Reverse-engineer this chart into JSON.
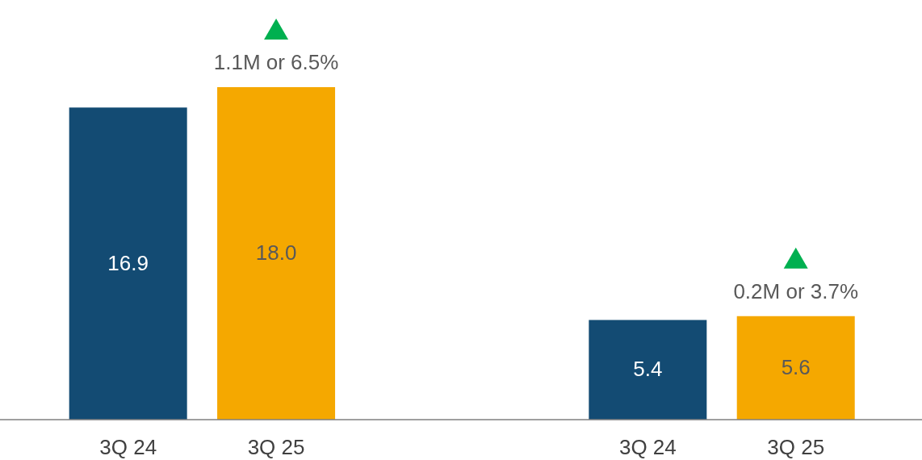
{
  "chart_data": {
    "type": "bar",
    "categories": [
      "3Q 24",
      "3Q 25",
      "3Q 24",
      "3Q 25"
    ],
    "values": [
      16.9,
      18.0,
      5.4,
      5.6
    ],
    "colors": [
      "#134b73",
      "#f5a800",
      "#134b73",
      "#f5a800"
    ],
    "value_labels": [
      "16.9",
      "18.0",
      "5.4",
      "5.6"
    ],
    "annotations": [
      "1.1M or 6.5%",
      "0.2M or 3.7%"
    ]
  }
}
